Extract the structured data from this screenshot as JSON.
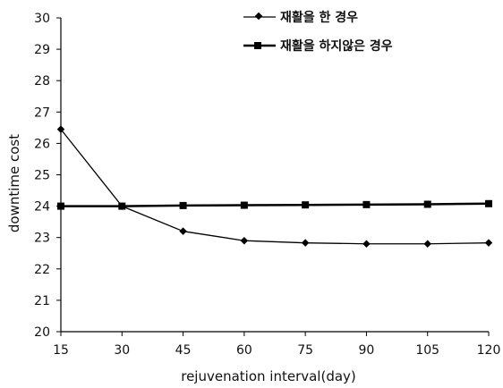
{
  "chart_data": {
    "type": "line",
    "title": "",
    "xlabel": "rejuvenation interval(day)",
    "ylabel": "downtime cost",
    "x": [
      15,
      30,
      45,
      60,
      75,
      90,
      105,
      120
    ],
    "xlim": [
      15,
      120
    ],
    "ylim": [
      20,
      30
    ],
    "yticks": [
      20,
      21,
      22,
      23,
      24,
      25,
      26,
      27,
      28,
      29,
      30
    ],
    "grid": false,
    "legend_position": "top-right",
    "series": [
      {
        "name": "재활을 한 경우",
        "marker": "diamond",
        "color": "#000000",
        "values": [
          26.45,
          24.0,
          23.2,
          22.9,
          22.83,
          22.8,
          22.8,
          22.83
        ]
      },
      {
        "name": "재활을 하지않은 경우",
        "marker": "square",
        "color": "#000000",
        "values": [
          24.0,
          24.0,
          24.02,
          24.03,
          24.04,
          24.05,
          24.06,
          24.08
        ]
      }
    ]
  }
}
